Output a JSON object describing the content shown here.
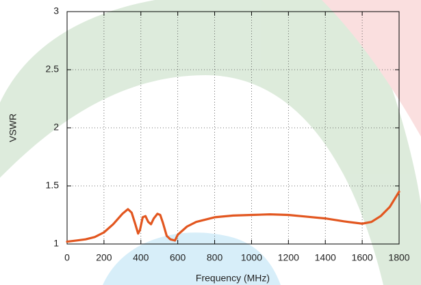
{
  "chart_data": {
    "type": "line",
    "x_label": "Frequency (MHz)",
    "y_label": "VSWR",
    "xlim": [
      0,
      1800
    ],
    "xticks": [
      0,
      200,
      400,
      600,
      800,
      1000,
      1200,
      1400,
      1600,
      1800
    ],
    "ylim": [
      1,
      3
    ],
    "yticks": [
      1,
      1.5,
      2,
      2.5,
      3
    ],
    "grid": true,
    "series": [
      {
        "name": "VSWR",
        "color": "#e2561f",
        "x": [
          0,
          50,
          100,
          150,
          200,
          250,
          300,
          330,
          350,
          370,
          385,
          395,
          410,
          425,
          440,
          455,
          470,
          490,
          505,
          520,
          540,
          560,
          585,
          600,
          650,
          700,
          800,
          900,
          1000,
          1100,
          1200,
          1300,
          1400,
          1500,
          1600,
          1650,
          1700,
          1750,
          1800
        ],
        "values": [
          1.02,
          1.03,
          1.04,
          1.06,
          1.1,
          1.17,
          1.26,
          1.3,
          1.27,
          1.17,
          1.09,
          1.12,
          1.23,
          1.24,
          1.19,
          1.17,
          1.22,
          1.26,
          1.25,
          1.18,
          1.07,
          1.04,
          1.03,
          1.08,
          1.15,
          1.19,
          1.23,
          1.245,
          1.25,
          1.255,
          1.25,
          1.235,
          1.22,
          1.195,
          1.175,
          1.19,
          1.24,
          1.32,
          1.45
        ]
      }
    ]
  }
}
